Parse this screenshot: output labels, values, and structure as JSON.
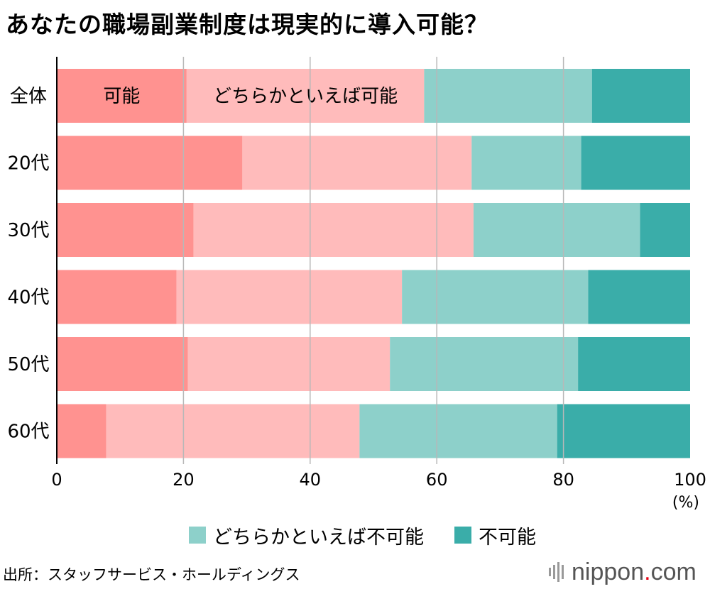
{
  "title": "あなたの職場副業制度は現実的に導入可能？",
  "source": "出所：スタッフサービス・ホールディングス",
  "logo": {
    "name": "nippon",
    "dot": ".",
    "suffix": "com"
  },
  "colors": {
    "kanou": "#ff9290",
    "dochiraka_kanou": "#ffbbbb",
    "dochiraka_fukanou": "#8dd0ca",
    "fukanou": "#3aada9",
    "grid": "#b8b8b8",
    "axis": "#000000"
  },
  "chart_data": {
    "type": "bar",
    "orientation": "horizontal",
    "stacked": true,
    "categories": [
      "全体",
      "20代",
      "30代",
      "40代",
      "50代",
      "60代"
    ],
    "series": [
      {
        "name": "可能",
        "color_key": "kanou",
        "values": [
          20.5,
          29.3,
          21.6,
          18.9,
          20.7,
          7.8
        ]
      },
      {
        "name": "どちらかといえば可能",
        "color_key": "dochiraka_kanou",
        "values": [
          37.5,
          36.2,
          44.2,
          35.6,
          31.9,
          40.0
        ]
      },
      {
        "name": "どちらかといえば不可能",
        "color_key": "dochiraka_fukanou",
        "values": [
          26.5,
          17.3,
          26.3,
          29.4,
          29.7,
          31.2
        ]
      },
      {
        "name": "不可能",
        "color_key": "fukanou",
        "values": [
          15.5,
          17.2,
          7.9,
          16.1,
          17.7,
          21.0
        ]
      }
    ],
    "inline_labels": {
      "category": "全体",
      "series": [
        "可能",
        "どちらかといえば可能"
      ]
    },
    "legend_series": [
      "どちらかといえば不可能",
      "不可能"
    ],
    "xlim": [
      0,
      100
    ],
    "xticks": [
      "0",
      "20",
      "40",
      "60",
      "80",
      "100"
    ],
    "xunit": "(%)",
    "grid": true,
    "legend_position": "bottom"
  }
}
